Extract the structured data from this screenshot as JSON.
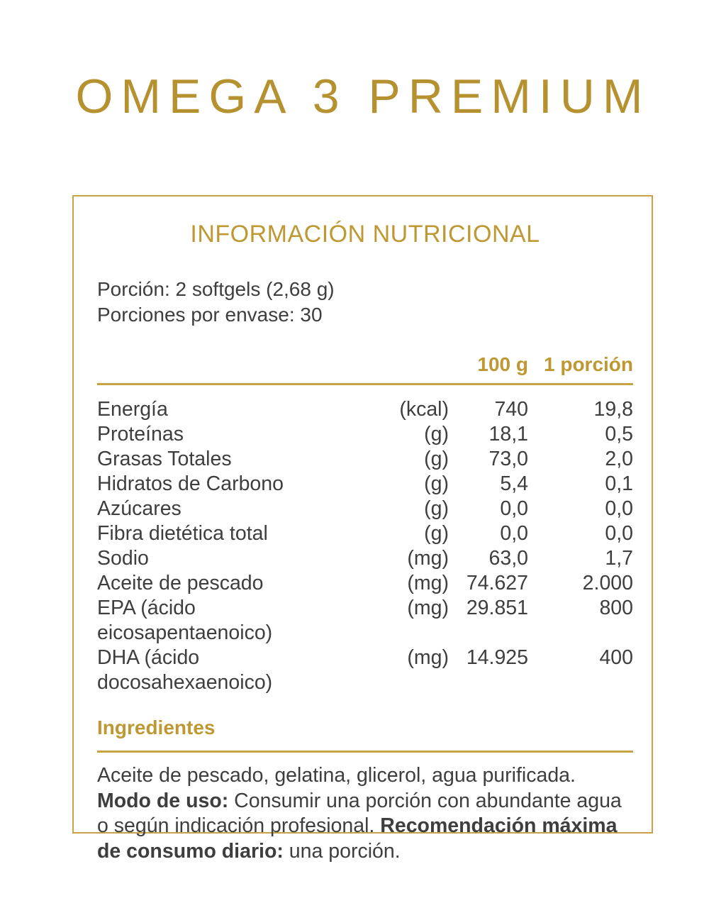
{
  "page": {
    "title": "OMEGA 3 PREMIUM"
  },
  "colors": {
    "gold_text": "#bd9833",
    "gold_rule": "#c7a345",
    "body_text": "#3e3e3e",
    "background": "#ffffff"
  },
  "panel": {
    "title": "INFORMACIÓN NUTRICIONAL",
    "serving": {
      "portion": "Porción: 2 softgels (2,68 g)",
      "servings_per_container": "Porciones por envase: 30"
    },
    "table": {
      "columns": {
        "per_100g": "100 g",
        "per_portion": "1 porción"
      },
      "rows": [
        {
          "label": "Energía",
          "unit": "(kcal)",
          "per_100g": "740",
          "per_portion": "19,8"
        },
        {
          "label": "Proteínas",
          "unit": "(g)",
          "per_100g": "18,1",
          "per_portion": "0,5"
        },
        {
          "label": "Grasas Totales",
          "unit": "(g)",
          "per_100g": "73,0",
          "per_portion": "2,0"
        },
        {
          "label": "Hidratos de Carbono",
          "unit": "(g)",
          "per_100g": "5,4",
          "per_portion": "0,1"
        },
        {
          "label": "Azúcares",
          "unit": "(g)",
          "per_100g": "0,0",
          "per_portion": "0,0"
        },
        {
          "label": "Fibra dietética total",
          "unit": "(g)",
          "per_100g": "0,0",
          "per_portion": "0,0"
        },
        {
          "label": "Sodio",
          "unit": "(mg)",
          "per_100g": "63,0",
          "per_portion": "1,7"
        },
        {
          "label": "Aceite de pescado",
          "unit": "(mg)",
          "per_100g": "74.627",
          "per_portion": "2.000"
        },
        {
          "label": "EPA (ácido eicosapentaenoico)",
          "unit": "(mg)",
          "per_100g": "29.851",
          "per_portion": "800"
        },
        {
          "label": "DHA (ácido docosahexaenoico)",
          "unit": "(mg)",
          "per_100g": "14.925",
          "per_portion": "400"
        }
      ]
    },
    "ingredients_title": "Ingredientes",
    "notes": {
      "line1": "Aceite de pescado, gelatina, glicerol, agua purificada.",
      "line2_bold": "Modo de uso:",
      "line2_text": " Consumir una porción con abundante agua",
      "line3_text": "o según indicación profesional. ",
      "line3_bold": "Recomendación máxima",
      "line4_bold": "de consumo diario:",
      "line4_text": " una porción."
    }
  }
}
